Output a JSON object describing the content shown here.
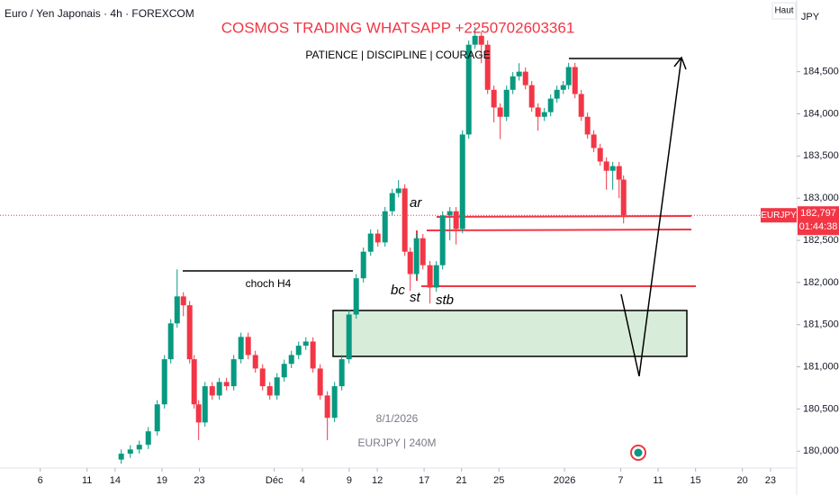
{
  "chart_data": {
    "type": "candlestick",
    "title": "COSMOS TRADING WHATSAPP +2250702603361",
    "subtitle": "PATIENCE  |  DISCIPLINE  |  COURAGE",
    "legend": "Euro / Yen Japonais · 4h · FOREXCOM",
    "watermark": [
      "8/1/2026",
      "EURJPY | 240M"
    ],
    "annotations": [
      "choch H4",
      "ar",
      "bc",
      "st",
      "stb"
    ],
    "scale_mode": "Haut",
    "currency": "JPY",
    "symbol": "EURJPY",
    "last_price": {
      "value": 182797,
      "label": "182,797"
    },
    "countdown": "01:44:38",
    "up_color": "#089981",
    "down_color": "#f23645",
    "xlim": [
      -4.3,
      80.8
    ],
    "xticks": [
      {
        "value": 0,
        "label": "6"
      },
      {
        "value": 5,
        "label": "11"
      },
      {
        "value": 8,
        "label": "14"
      },
      {
        "value": 13,
        "label": "19"
      },
      {
        "value": 17,
        "label": "23"
      },
      {
        "value": 25,
        "label": "Déc"
      },
      {
        "value": 28,
        "label": "4"
      },
      {
        "value": 33,
        "label": "9"
      },
      {
        "value": 36,
        "label": "12"
      },
      {
        "value": 41,
        "label": "17"
      },
      {
        "value": 45,
        "label": "21"
      },
      {
        "value": 49,
        "label": "25"
      },
      {
        "value": 56,
        "label": "2026"
      },
      {
        "value": 62,
        "label": "7"
      },
      {
        "value": 66,
        "label": "11"
      },
      {
        "value": 70,
        "label": "15"
      },
      {
        "value": 75,
        "label": "20"
      },
      {
        "value": 78,
        "label": "23"
      }
    ],
    "ylim": [
      179800,
      185350
    ],
    "yticks": [
      {
        "value": 180000,
        "label": "180,000"
      },
      {
        "value": 180500,
        "label": "180,500"
      },
      {
        "value": 181000,
        "label": "181,000"
      },
      {
        "value": 181500,
        "label": "181,500"
      },
      {
        "value": 182000,
        "label": "182,000"
      },
      {
        "value": 182500,
        "label": "182,500"
      },
      {
        "value": 183000,
        "label": "183,000"
      },
      {
        "value": 183500,
        "label": "183,500"
      },
      {
        "value": 184000,
        "label": "184,000"
      },
      {
        "value": 184500,
        "label": "184,500"
      }
    ],
    "x": [
      8.65,
      9.62,
      10.58,
      11.54,
      12.5,
      13.27,
      13.94,
      14.62,
      15.29,
      15.96,
      16.44,
      16.92,
      17.6,
      18.37,
      19.13,
      19.9,
      20.67,
      21.44,
      22.21,
      22.98,
      23.75,
      24.52,
      25.29,
      26.06,
      26.83,
      27.6,
      28.37,
      29.13,
      29.9,
      30.67,
      31.44,
      32.21,
      32.98,
      33.75,
      34.52,
      35.29,
      36.06,
      36.83,
      37.6,
      38.27,
      38.94,
      39.52,
      40.19,
      40.87,
      41.63,
      42.31,
      42.98,
      43.75,
      44.42,
      45.1,
      45.77,
      46.44,
      47.12,
      47.79,
      48.46,
      49.13,
      49.81,
      50.48,
      51.15,
      51.83,
      52.5,
      53.17,
      53.85,
      54.52,
      55.19,
      55.87,
      56.44,
      57.12,
      57.79,
      58.46,
      59.13,
      59.81,
      60.48,
      61.15,
      61.83,
      62.31
    ],
    "candles": [
      [
        179900,
        180020,
        179850,
        179970
      ],
      [
        179970,
        180070,
        179920,
        180020
      ],
      [
        180020,
        180125,
        179970,
        180075
      ],
      [
        180075,
        180285,
        180025,
        180235
      ],
      [
        180235,
        180605,
        180185,
        180555
      ],
      [
        180555,
        181140,
        180505,
        181090
      ],
      [
        181090,
        181565,
        181040,
        181515
      ],
      [
        181515,
        182155,
        181465,
        181835
      ],
      [
        181835,
        181885,
        181600,
        181730
      ],
      [
        181730,
        181780,
        181040,
        181090
      ],
      [
        181090,
        181140,
        180505,
        180555
      ],
      [
        180555,
        180605,
        180130,
        180340
      ],
      [
        180340,
        180820,
        180290,
        180770
      ],
      [
        180770,
        180820,
        180610,
        180660
      ],
      [
        180660,
        180870,
        180610,
        180820
      ],
      [
        180820,
        180870,
        180720,
        180770
      ],
      [
        180770,
        181140,
        180720,
        181090
      ],
      [
        181090,
        181405,
        181040,
        181355
      ],
      [
        181355,
        181405,
        181090,
        181140
      ],
      [
        181140,
        181190,
        180930,
        180980
      ],
      [
        180980,
        181030,
        180720,
        180770
      ],
      [
        180770,
        180820,
        180610,
        180660
      ],
      [
        180660,
        180925,
        180610,
        180875
      ],
      [
        180875,
        181085,
        180825,
        181035
      ],
      [
        181035,
        181190,
        180985,
        181140
      ],
      [
        181140,
        181300,
        181090,
        181250
      ],
      [
        181250,
        181350,
        181200,
        181300
      ],
      [
        181300,
        181350,
        180930,
        180980
      ],
      [
        180980,
        181030,
        180610,
        180660
      ],
      [
        180660,
        180710,
        180130,
        180395
      ],
      [
        180395,
        180820,
        180345,
        180770
      ],
      [
        180770,
        181140,
        180720,
        181090
      ],
      [
        181090,
        181670,
        181040,
        181620
      ],
      [
        181620,
        182100,
        181570,
        182050
      ],
      [
        182050,
        182415,
        182000,
        182365
      ],
      [
        182365,
        182630,
        182315,
        182580
      ],
      [
        182580,
        182630,
        182425,
        182475
      ],
      [
        182475,
        182895,
        182425,
        182845
      ],
      [
        182845,
        183110,
        182795,
        183060
      ],
      [
        183060,
        183215,
        183010,
        183115
      ],
      [
        183115,
        183165,
        182315,
        182365
      ],
      [
        182365,
        182415,
        181900,
        182100
      ],
      [
        182100,
        182575,
        182050,
        182525
      ],
      [
        182525,
        182575,
        182155,
        182205
      ],
      [
        182205,
        182255,
        181750,
        181940
      ],
      [
        181940,
        182255,
        181890,
        182205
      ],
      [
        182205,
        182845,
        182155,
        182795
      ],
      [
        182795,
        182895,
        182500,
        182845
      ],
      [
        182845,
        182895,
        182450,
        182635
      ],
      [
        182635,
        183805,
        182585,
        183755
      ],
      [
        183755,
        184870,
        183705,
        184820
      ],
      [
        184820,
        185030,
        184770,
        184925
      ],
      [
        184925,
        184975,
        184600,
        184820
      ],
      [
        184820,
        184870,
        184235,
        184285
      ],
      [
        184285,
        184335,
        183900,
        184075
      ],
      [
        184075,
        184125,
        183700,
        183965
      ],
      [
        183965,
        184335,
        183915,
        184285
      ],
      [
        184285,
        184495,
        184235,
        184445
      ],
      [
        184445,
        184600,
        184395,
        184500
      ],
      [
        184500,
        184550,
        184290,
        184340
      ],
      [
        184340,
        184390,
        184025,
        184075
      ],
      [
        184075,
        184125,
        183800,
        183965
      ],
      [
        183965,
        184070,
        183915,
        184020
      ],
      [
        184020,
        184230,
        183970,
        184180
      ],
      [
        184180,
        184335,
        184130,
        184285
      ],
      [
        184285,
        184390,
        184235,
        184340
      ],
      [
        184340,
        184605,
        184290,
        184555
      ],
      [
        184555,
        184605,
        184185,
        184235
      ],
      [
        184235,
        184285,
        183915,
        183965
      ],
      [
        183965,
        184015,
        183705,
        183755
      ],
      [
        183755,
        183805,
        183545,
        183595
      ],
      [
        183595,
        183645,
        183385,
        183435
      ],
      [
        183435,
        183485,
        183100,
        183325
      ],
      [
        183325,
        183430,
        183100,
        183380
      ],
      [
        183380,
        183430,
        183000,
        183220
      ],
      [
        183220,
        183270,
        182700,
        182797
      ]
    ]
  }
}
